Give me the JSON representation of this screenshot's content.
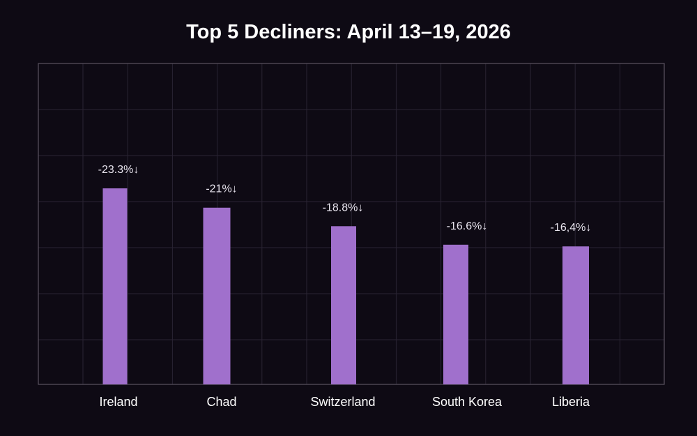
{
  "chart_data": {
    "type": "bar",
    "title": "Top 5 Decliners: April 13–19, 2026",
    "categories": [
      "Ireland",
      "Chad",
      "Switzerland",
      "South Korea",
      "Liberia"
    ],
    "values": [
      -23.3,
      -21,
      -18.8,
      -16.6,
      -16.4
    ],
    "data_labels": [
      "-23.3%↓",
      "-21%↓",
      "-18.8%↓",
      "-16.6%↓",
      "-16,4%↓"
    ],
    "xlabel": "",
    "ylabel": "",
    "grid": true,
    "legend": "none",
    "bar_color": "#a070cc",
    "background": "#0e0a14"
  }
}
